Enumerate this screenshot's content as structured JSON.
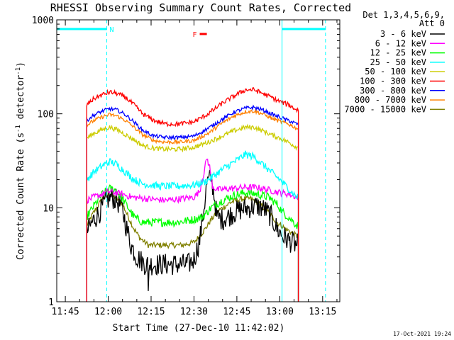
{
  "chart_data": {
    "type": "line",
    "title": "RHESSI Observing Summary Count Rates, Corrected",
    "xlabel": "Start Time (27-Dec-10 11:42:02)",
    "ylabel": "Corrected Count Rate (s",
    "ylabel_sup1": "-1",
    "ylabel_mid": " detector",
    "ylabel_sup2": "-1",
    "ylabel_end": ")",
    "yscale": "log",
    "ylim": [
      1,
      1000
    ],
    "xlim_minutes": [
      702,
      801
    ],
    "x_ticks": [
      {
        "label": "11:45",
        "minute": 705
      },
      {
        "label": "12:00",
        "minute": 720
      },
      {
        "label": "12:15",
        "minute": 735
      },
      {
        "label": "12:30",
        "minute": 750
      },
      {
        "label": "12:45",
        "minute": 765
      },
      {
        "label": "13:00",
        "minute": 780
      },
      {
        "label": "13:15",
        "minute": 795
      }
    ],
    "y_ticks": [
      {
        "label": "1",
        "value": 1
      },
      {
        "label": "10",
        "value": 10
      },
      {
        "label": "100",
        "value": 100
      },
      {
        "label": "1000",
        "value": 1000
      }
    ],
    "legend_header": [
      "Det 1,3,4,5,6,9,",
      "Att 0"
    ],
    "legend_position": "outside-right",
    "data_start_minute": 712.5,
    "data_end_minute": 786.5,
    "series": [
      {
        "name": "3 - 6 keV",
        "color": "#000000",
        "noise": 0.12,
        "points": [
          [
            712.5,
            5.5
          ],
          [
            715,
            7.5
          ],
          [
            717,
            9
          ],
          [
            719.5,
            12
          ],
          [
            721,
            13
          ],
          [
            723,
            12
          ],
          [
            725,
            9.5
          ],
          [
            726.5,
            6
          ],
          [
            728,
            4
          ],
          [
            730,
            3
          ],
          [
            733,
            2.5
          ],
          [
            738,
            2.5
          ],
          [
            743,
            2.5
          ],
          [
            748,
            2.5
          ],
          [
            750,
            2.8
          ],
          [
            752,
            4.5
          ],
          [
            753.5,
            10
          ],
          [
            754.5,
            18
          ],
          [
            756,
            21
          ],
          [
            757,
            14
          ],
          [
            758,
            8
          ],
          [
            760,
            7.5
          ],
          [
            763,
            8.5
          ],
          [
            766,
            9.5
          ],
          [
            769,
            10
          ],
          [
            772,
            10.5
          ],
          [
            775,
            9.5
          ],
          [
            777,
            8
          ],
          [
            779,
            6
          ],
          [
            781,
            5
          ],
          [
            783,
            4.5
          ],
          [
            786,
            4
          ]
        ],
        "spikes": [
          [
            734,
            1.3
          ]
        ]
      },
      {
        "name": "6 - 12 keV",
        "color": "#ff00ff",
        "noise": 0.035,
        "points": [
          [
            712.5,
            12
          ],
          [
            715,
            13
          ],
          [
            718,
            14
          ],
          [
            720,
            15
          ],
          [
            722,
            14.5
          ],
          [
            725,
            14
          ],
          [
            728,
            13
          ],
          [
            733,
            12.5
          ],
          [
            740,
            12
          ],
          [
            746,
            12.5
          ],
          [
            750,
            13
          ],
          [
            752,
            15
          ],
          [
            753.5,
            24
          ],
          [
            754.5,
            34
          ],
          [
            755.5,
            27
          ],
          [
            756.5,
            17
          ],
          [
            758,
            15.5
          ],
          [
            763,
            16
          ],
          [
            768,
            16.5
          ],
          [
            772,
            16.5
          ],
          [
            776,
            15.5
          ],
          [
            780,
            14.5
          ],
          [
            783,
            14
          ],
          [
            786,
            13
          ]
        ]
      },
      {
        "name": "12 - 25 keV",
        "color": "#00ff00",
        "noise": 0.045,
        "points": [
          [
            712.5,
            8
          ],
          [
            715,
            10.5
          ],
          [
            718,
            14
          ],
          [
            720.5,
            16
          ],
          [
            722.5,
            15.5
          ],
          [
            725,
            12.5
          ],
          [
            727,
            10
          ],
          [
            729,
            8
          ],
          [
            732,
            7
          ],
          [
            738,
            7
          ],
          [
            744,
            7
          ],
          [
            750,
            7.5
          ],
          [
            753,
            8
          ],
          [
            756,
            10
          ],
          [
            760,
            12
          ],
          [
            764,
            13.5
          ],
          [
            768,
            14.5
          ],
          [
            772,
            14
          ],
          [
            776,
            13
          ],
          [
            779,
            11
          ],
          [
            781,
            9
          ],
          [
            783,
            8
          ],
          [
            786,
            6.5
          ]
        ]
      },
      {
        "name": "25 - 50 keV",
        "color": "#00ffff",
        "noise": 0.04,
        "points": [
          [
            712.5,
            20
          ],
          [
            715,
            24
          ],
          [
            718,
            28
          ],
          [
            720.5,
            31
          ],
          [
            723,
            29
          ],
          [
            726,
            24
          ],
          [
            729,
            20
          ],
          [
            732,
            18
          ],
          [
            738,
            17
          ],
          [
            744,
            17
          ],
          [
            750,
            17.5
          ],
          [
            754,
            19
          ],
          [
            757,
            22
          ],
          [
            761,
            27
          ],
          [
            765,
            32
          ],
          [
            768,
            37
          ],
          [
            771,
            35
          ],
          [
            774,
            29
          ],
          [
            777,
            24
          ],
          [
            780,
            20
          ],
          [
            783,
            16
          ],
          [
            786,
            13
          ]
        ]
      },
      {
        "name": "50 - 100 keV",
        "color": "#cccc00",
        "noise": 0.025,
        "points": [
          [
            712.5,
            55
          ],
          [
            715,
            62
          ],
          [
            718,
            68
          ],
          [
            720.5,
            72
          ],
          [
            723,
            68
          ],
          [
            726,
            60
          ],
          [
            729,
            53
          ],
          [
            732,
            46
          ],
          [
            736,
            43
          ],
          [
            740,
            42
          ],
          [
            745,
            42
          ],
          [
            750,
            44
          ],
          [
            755,
            50
          ],
          [
            760,
            58
          ],
          [
            764,
            66
          ],
          [
            768,
            72
          ],
          [
            771,
            72
          ],
          [
            774,
            66
          ],
          [
            777,
            60
          ],
          [
            780,
            55
          ],
          [
            783,
            50
          ],
          [
            786,
            44
          ]
        ]
      },
      {
        "name": "100 - 300 keV",
        "color": "#ff0000",
        "noise": 0.025,
        "points": [
          [
            712.5,
            125
          ],
          [
            715,
            145
          ],
          [
            718,
            160
          ],
          [
            720.5,
            170
          ],
          [
            723,
            165
          ],
          [
            726,
            150
          ],
          [
            729,
            125
          ],
          [
            732,
            100
          ],
          [
            736,
            85
          ],
          [
            740,
            78
          ],
          [
            745,
            78
          ],
          [
            750,
            82
          ],
          [
            755,
            100
          ],
          [
            760,
            130
          ],
          [
            764,
            155
          ],
          [
            768,
            180
          ],
          [
            771,
            180
          ],
          [
            774,
            165
          ],
          [
            777,
            150
          ],
          [
            780,
            135
          ],
          [
            783,
            125
          ],
          [
            786,
            110
          ]
        ]
      },
      {
        "name": "300 - 800 keV",
        "color": "#0000ff",
        "noise": 0.02,
        "points": [
          [
            712.5,
            85
          ],
          [
            715,
            97
          ],
          [
            718,
            107
          ],
          [
            720.5,
            113
          ],
          [
            723,
            110
          ],
          [
            726,
            98
          ],
          [
            729,
            82
          ],
          [
            732,
            67
          ],
          [
            736,
            58
          ],
          [
            740,
            56
          ],
          [
            745,
            56
          ],
          [
            750,
            58
          ],
          [
            755,
            70
          ],
          [
            760,
            88
          ],
          [
            764,
            104
          ],
          [
            768,
            115
          ],
          [
            771,
            117
          ],
          [
            774,
            110
          ],
          [
            777,
            100
          ],
          [
            780,
            92
          ],
          [
            783,
            85
          ],
          [
            786,
            78
          ]
        ]
      },
      {
        "name": "800 - 7000 keV",
        "color": "#ff8000",
        "noise": 0.02,
        "points": [
          [
            712.5,
            75
          ],
          [
            715,
            85
          ],
          [
            718,
            93
          ],
          [
            720.5,
            98
          ],
          [
            723,
            95
          ],
          [
            726,
            85
          ],
          [
            729,
            72
          ],
          [
            732,
            60
          ],
          [
            736,
            52
          ],
          [
            740,
            50
          ],
          [
            745,
            50
          ],
          [
            750,
            52
          ],
          [
            755,
            62
          ],
          [
            760,
            80
          ],
          [
            764,
            95
          ],
          [
            768,
            105
          ],
          [
            771,
            107
          ],
          [
            774,
            100
          ],
          [
            777,
            90
          ],
          [
            780,
            83
          ],
          [
            783,
            78
          ],
          [
            786,
            70
          ]
        ]
      },
      {
        "name": "7000 - 15000 keV",
        "color": "#808000",
        "noise": 0.03,
        "points": [
          [
            712.5,
            6.5
          ],
          [
            715,
            9
          ],
          [
            718,
            12.5
          ],
          [
            720.5,
            14
          ],
          [
            722.5,
            13
          ],
          [
            725,
            11
          ],
          [
            727,
            8
          ],
          [
            729,
            6
          ],
          [
            731,
            4.8
          ],
          [
            734,
            4
          ],
          [
            740,
            4
          ],
          [
            746,
            4
          ],
          [
            750,
            4.3
          ],
          [
            752,
            5
          ],
          [
            754,
            6
          ],
          [
            756,
            7.5
          ],
          [
            759,
            9.5
          ],
          [
            763,
            11.5
          ],
          [
            767,
            12.5
          ],
          [
            770,
            12.5
          ],
          [
            773,
            11
          ],
          [
            776,
            9
          ],
          [
            779,
            7
          ],
          [
            782,
            6
          ],
          [
            786,
            5
          ]
        ]
      }
    ],
    "flag_bars": [
      {
        "label": "N",
        "color": "#00ffff",
        "start": 702,
        "end": 719.5
      },
      {
        "label": "",
        "color": "#00ffff",
        "start": 780.8,
        "end": 796
      },
      {
        "label": "F",
        "color": "#ff0000",
        "start": 752,
        "end": 754.5
      }
    ],
    "vlines": [
      {
        "minute": 702,
        "color": "#00ffff",
        "style": "solid"
      },
      {
        "minute": 719.5,
        "color": "#00ffff",
        "style": "dashed"
      },
      {
        "minute": 780.8,
        "color": "#00ffff",
        "style": "solid"
      },
      {
        "minute": 796,
        "color": "#00ffff",
        "style": "dashed"
      }
    ]
  },
  "footer_date": "17-Oct-2021 19:24"
}
